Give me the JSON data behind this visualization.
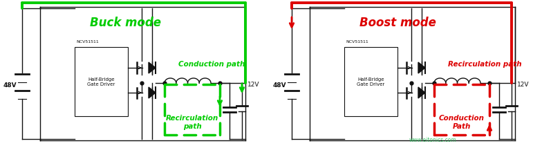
{
  "fig_width": 7.71,
  "fig_height": 2.14,
  "dpi": 100,
  "bg_color": "#ffffff",
  "green": "#00cc00",
  "red": "#dd0000",
  "black": "#111111",
  "watermark": "www.eitonics.com",
  "buck_title": "Buck mode",
  "boost_title": "Boost mode",
  "buck_conduction": "Conduction path",
  "buck_recirc": "Recirculation\npath",
  "boost_recirc": "Recirculation path",
  "boost_conduction": "Conduction\nPath",
  "label_48v": "48V",
  "label_12v": "12V",
  "label_ncv": "NCV51511",
  "label_hb": "Half-Bridge\nGate Driver"
}
